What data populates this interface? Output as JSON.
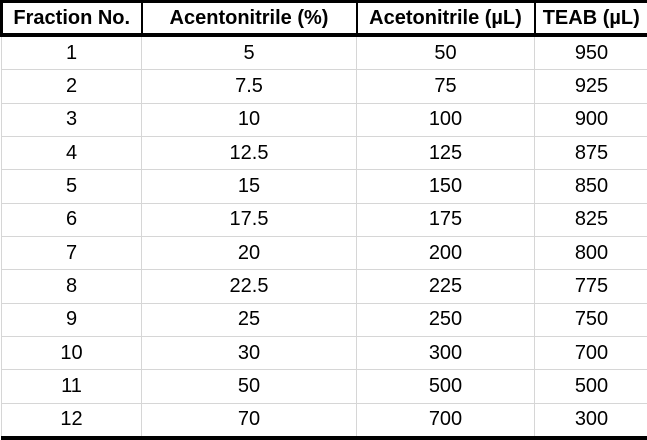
{
  "table": {
    "title": "fraction-gradient-table",
    "headers": [
      "Fraction No.",
      "Acentonitrile (%)",
      "Acetonitrile (µL)",
      "TEAB (µL)"
    ],
    "rows": [
      [
        "1",
        "5",
        "50",
        "950"
      ],
      [
        "2",
        "7.5",
        "75",
        "925"
      ],
      [
        "3",
        "10",
        "100",
        "900"
      ],
      [
        "4",
        "12.5",
        "125",
        "875"
      ],
      [
        "5",
        "15",
        "150",
        "850"
      ],
      [
        "6",
        "17.5",
        "175",
        "825"
      ],
      [
        "7",
        "20",
        "200",
        "800"
      ],
      [
        "8",
        "22.5",
        "225",
        "775"
      ],
      [
        "9",
        "25",
        "250",
        "750"
      ],
      [
        "10",
        "30",
        "300",
        "700"
      ],
      [
        "11",
        "50",
        "500",
        "500"
      ],
      [
        "12",
        "70",
        "700",
        "300"
      ]
    ],
    "colors": {
      "text": "#000000",
      "heavy_border": "#000000",
      "gridline": "#d6d6d6",
      "background": "#ffffff"
    }
  }
}
